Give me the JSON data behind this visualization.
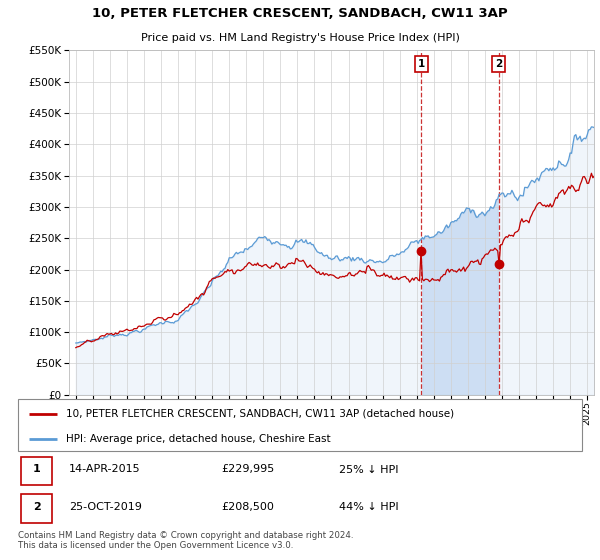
{
  "title": "10, PETER FLETCHER CRESCENT, SANDBACH, CW11 3AP",
  "subtitle": "Price paid vs. HM Land Registry's House Price Index (HPI)",
  "hpi_label": "HPI: Average price, detached house, Cheshire East",
  "property_label": "10, PETER FLETCHER CRESCENT, SANDBACH, CW11 3AP (detached house)",
  "footer": "Contains HM Land Registry data © Crown copyright and database right 2024.\nThis data is licensed under the Open Government Licence v3.0.",
  "annotation1": {
    "label": "1",
    "date": "14-APR-2015",
    "price": "£229,995",
    "pct": "25% ↓ HPI",
    "x_year": 2015.28
  },
  "annotation2": {
    "label": "2",
    "date": "25-OCT-2019",
    "price": "£208,500",
    "pct": "44% ↓ HPI",
    "x_year": 2019.81
  },
  "hpi_color": "#5b9bd5",
  "hpi_fill_color": "#c5d9f1",
  "price_color": "#c00000",
  "plot_bg_color": "#ffffff",
  "grid_color": "#d0d0d0",
  "ylim": [
    0,
    550000
  ],
  "yticks": [
    0,
    50000,
    100000,
    150000,
    200000,
    250000,
    300000,
    350000,
    400000,
    450000,
    500000,
    550000
  ],
  "xlim_start": 1994.6,
  "xlim_end": 2025.4,
  "sale1_price": 229995,
  "sale2_price": 208500,
  "sale1_year": 2015.28,
  "sale2_year": 2019.81
}
